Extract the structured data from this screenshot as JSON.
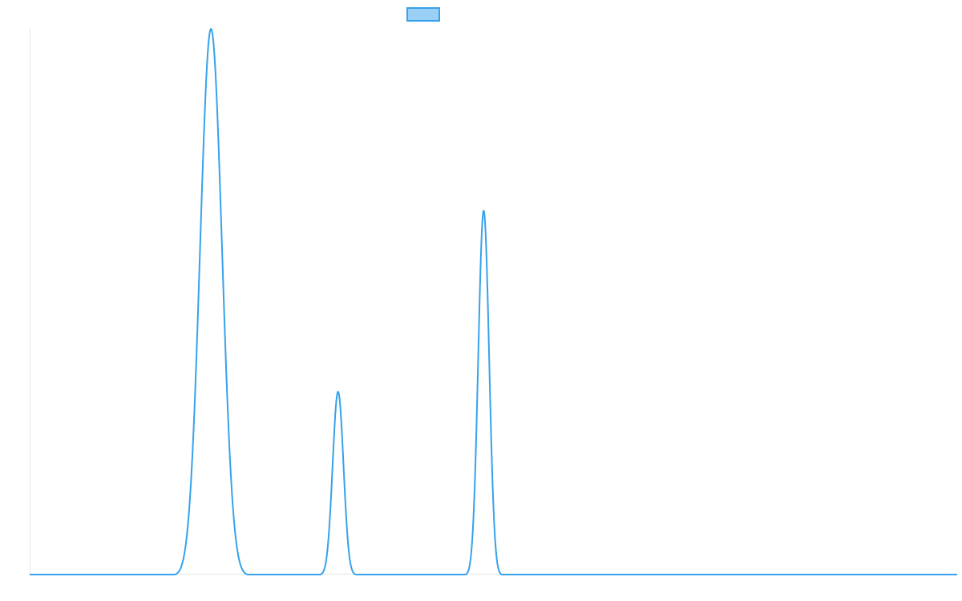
{
  "chart_data": {
    "type": "line",
    "title": "",
    "xlabel": "",
    "ylabel": "",
    "xlim": [
      0,
      100
    ],
    "ylim": [
      0,
      1
    ],
    "grid": false,
    "legend_placement": "top-center",
    "series": [
      {
        "color": "#36a2eb",
        "fill": "#9ad0f5",
        "peaks": [
          {
            "start": 15.65,
            "center": 19.55,
            "end": 23.5,
            "height": 1.0
          },
          {
            "start": 31.3,
            "center": 33.25,
            "end": 35.2,
            "height": 0.335
          },
          {
            "start": 47.0,
            "center": 48.95,
            "end": 50.9,
            "height": 0.667
          }
        ]
      }
    ]
  }
}
